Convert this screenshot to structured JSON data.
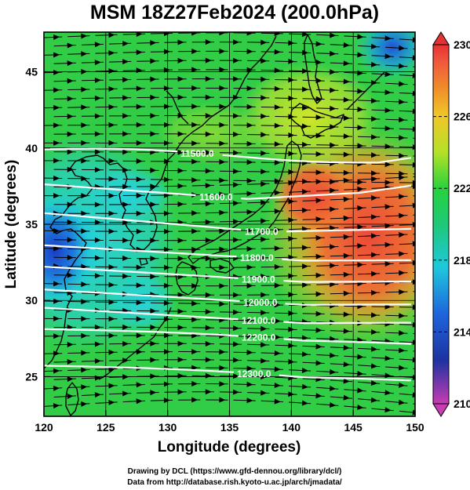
{
  "title": "MSM 18Z27Feb2024 (200.0hPa)",
  "map": {
    "x_label": "Longitude (degrees)",
    "y_label": "Latitude  (degrees)",
    "lon_range": [
      120,
      150
    ],
    "lat_range": [
      22.4,
      47.6
    ],
    "lon_ticks": [
      "120",
      "125",
      "130",
      "135",
      "140",
      "145",
      "150"
    ],
    "lat_ticks": [
      "25",
      "30",
      "35",
      "40",
      "45"
    ],
    "field": "temperature shading with streamlines",
    "coastlines": "Japan, Korea, eastern China, Sakhalin, Ryukyu islands"
  },
  "colorbar": {
    "min": 210,
    "max": 230,
    "labels": [
      "230",
      "226",
      "222",
      "218",
      "214",
      "210"
    ],
    "colors": [
      "#c83cb4",
      "#1e32a0",
      "#1e64dc",
      "#1ec8dc",
      "#1ec878",
      "#28d23c",
      "#b4e128",
      "#f0c828",
      "#f08c28",
      "#f05a3c",
      "#e63232"
    ]
  },
  "contours": [
    {
      "label": "11500.0",
      "lat": 39.6
    },
    {
      "label": "11600.0",
      "lat": 36.9
    },
    {
      "label": "11700.0",
      "lat": 34.6
    },
    {
      "label": "11800.0",
      "lat": 32.9
    },
    {
      "label": "11900.0",
      "lat": 31.5
    },
    {
      "label": "12000.0",
      "lat": 30.0
    },
    {
      "label": "12100.0",
      "lat": 28.8
    },
    {
      "label": "12200.0",
      "lat": 27.4
    },
    {
      "label": "12300.0",
      "lat": 25.0
    }
  ],
  "credits": {
    "line1": "Drawing by DCL (https://www.gfd-dennou.org/library/dcl/)",
    "line2": "Data from http://database.rish.kyoto-u.ac.jp/arch/jmadata/"
  }
}
